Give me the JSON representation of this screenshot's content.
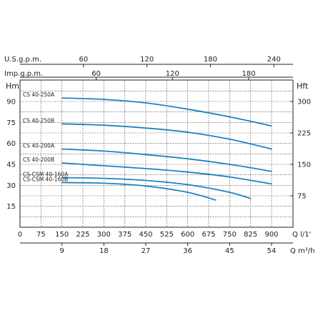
{
  "chart_data": {
    "type": "line",
    "x_axes": {
      "usgpm": {
        "label": "U.S.g.p.m.",
        "range": [
          0,
          240
        ],
        "ticks": [
          "60",
          "120",
          "180",
          "240"
        ]
      },
      "impgpm": {
        "label": "Imp.g.p.m.",
        "range": [
          0,
          200
        ],
        "ticks": [
          "60",
          "120",
          "180"
        ]
      },
      "lmin": {
        "label": "Q l/1'",
        "range": [
          0,
          900
        ],
        "ticks": [
          "0",
          "75",
          "150",
          "225",
          "300",
          "375",
          "450",
          "525",
          "600",
          "675",
          "750",
          "825",
          "900"
        ]
      },
      "m3h": {
        "label": "Q m³/h",
        "range": [
          0,
          54
        ],
        "ticks": [
          "9",
          "18",
          "27",
          "36",
          "45",
          "54"
        ]
      }
    },
    "y_axes": {
      "left": {
        "label": "Hm",
        "range": [
          0,
          105
        ],
        "ticks": [
          "15",
          "30",
          "45",
          "60",
          "75",
          "90"
        ]
      },
      "right": {
        "label": "Hft",
        "range": [
          0,
          344.5
        ],
        "ticks": [
          "75",
          "150",
          "225",
          "300"
        ]
      }
    },
    "grid": true,
    "x_unit": "l/min",
    "y_unit": "m",
    "series": [
      {
        "name": "CS 40-250A",
        "x": [
          150,
          300,
          450,
          600,
          750,
          900
        ],
        "y": [
          92.5,
          91.5,
          89,
          84.5,
          79,
          72.5
        ]
      },
      {
        "name": "CS 40-250B",
        "x": [
          150,
          300,
          450,
          600,
          750,
          900
        ],
        "y": [
          74,
          73,
          71,
          68,
          63,
          56
        ]
      },
      {
        "name": "CS 40-200A",
        "x": [
          150,
          300,
          450,
          600,
          750,
          900
        ],
        "y": [
          56,
          54.5,
          52,
          49,
          45,
          40
        ]
      },
      {
        "name": "CS 40-200B",
        "x": [
          150,
          300,
          450,
          600,
          750,
          900
        ],
        "y": [
          46,
          44,
          42,
          39.5,
          36,
          31
        ]
      },
      {
        "name": "CS-CSM 40-160A",
        "x": [
          150,
          300,
          450,
          600,
          750,
          825
        ],
        "y": [
          35.5,
          35,
          33.5,
          30.5,
          25,
          20.5
        ]
      },
      {
        "name": "CS-CSM 40-160B",
        "x": [
          150,
          300,
          450,
          600,
          700
        ],
        "y": [
          32,
          31.5,
          29.5,
          25,
          19.5
        ]
      }
    ]
  }
}
